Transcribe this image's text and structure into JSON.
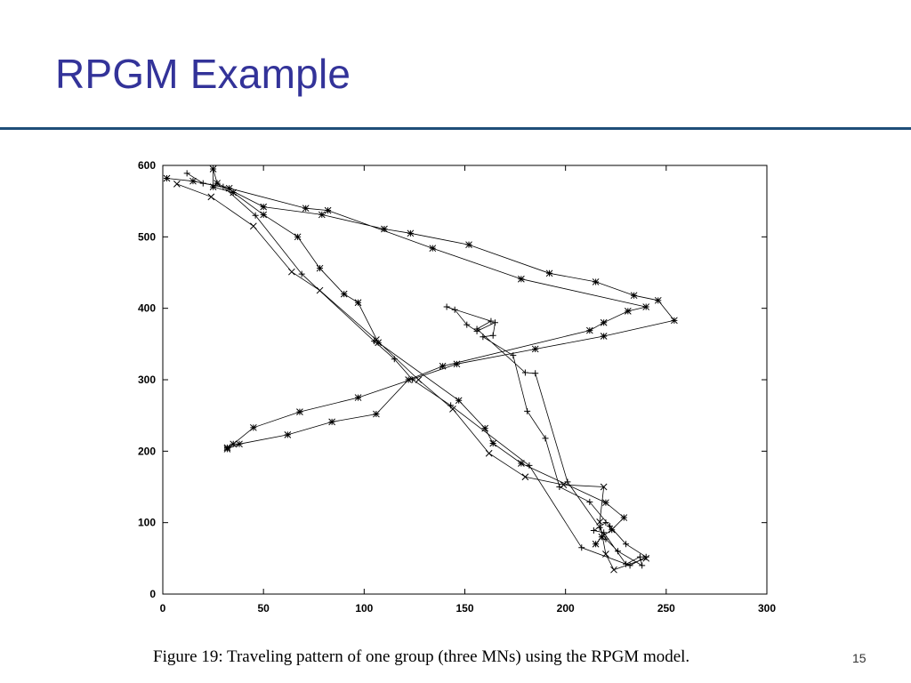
{
  "slide": {
    "title": "RPGM Example",
    "caption": "Figure 19: Traveling pattern of one group (three MNs) using the RPGM model.",
    "page_number": "15",
    "title_color": "#333399",
    "rule_color": "#1f4e79"
  },
  "chart_data": {
    "type": "line",
    "title": "",
    "xlabel": "",
    "ylabel": "",
    "xlim": [
      0,
      300
    ],
    "ylim": [
      0,
      600
    ],
    "xticks": [
      0,
      50,
      100,
      150,
      200,
      250,
      300
    ],
    "yticks": [
      0,
      100,
      200,
      300,
      400,
      500,
      600
    ],
    "grid": false,
    "legend": "none",
    "series": [
      {
        "marker": "x",
        "points": [
          [
            7,
            574
          ],
          [
            24,
            556
          ],
          [
            45,
            515
          ],
          [
            64,
            451
          ],
          [
            78,
            425
          ],
          [
            106,
            356
          ],
          [
            127,
            300
          ],
          [
            144,
            259
          ],
          [
            162,
            197
          ],
          [
            180,
            164
          ],
          [
            199,
            153
          ],
          [
            219,
            150
          ],
          [
            217,
            101
          ],
          [
            220,
            56
          ],
          [
            224,
            34
          ],
          [
            240,
            50
          ]
        ]
      },
      {
        "marker": "+",
        "points": [
          [
            12,
            589
          ],
          [
            20,
            575
          ],
          [
            30,
            570
          ],
          [
            46,
            530
          ],
          [
            69,
            448
          ],
          [
            105,
            354
          ],
          [
            115,
            329
          ],
          [
            124,
            300
          ],
          [
            143,
            264
          ],
          [
            182,
            180
          ],
          [
            208,
            65
          ],
          [
            232,
            40
          ],
          [
            240,
            52
          ],
          [
            230,
            70
          ],
          [
            222,
            95
          ],
          [
            212,
            129
          ],
          [
            197,
            150
          ],
          [
            190,
            218
          ],
          [
            181,
            256
          ],
          [
            174,
            334
          ],
          [
            159,
            360
          ],
          [
            164,
            362
          ],
          [
            165,
            380
          ],
          [
            156,
            368
          ],
          [
            151,
            377
          ],
          [
            145,
            398
          ],
          [
            141,
            402
          ],
          [
            163,
            382
          ],
          [
            156,
            371
          ],
          [
            180,
            310
          ],
          [
            185,
            309
          ],
          [
            201,
            157
          ],
          [
            217,
            93
          ],
          [
            220,
            77
          ],
          [
            226,
            60
          ],
          [
            238,
            40
          ],
          [
            237,
            52
          ],
          [
            230,
            42
          ],
          [
            219,
            86
          ],
          [
            214,
            89
          ],
          [
            220,
            100
          ]
        ]
      },
      {
        "marker": "asterisk",
        "points": [
          [
            2,
            582
          ],
          [
            15,
            578
          ],
          [
            33,
            568
          ],
          [
            71,
            540
          ],
          [
            82,
            537
          ],
          [
            134,
            484
          ],
          [
            178,
            441
          ],
          [
            240,
            402
          ],
          [
            231,
            396
          ],
          [
            219,
            380
          ],
          [
            212,
            369
          ],
          [
            139,
            319
          ],
          [
            122,
            300
          ],
          [
            106,
            252
          ],
          [
            84,
            241
          ],
          [
            62,
            223
          ],
          [
            38,
            210
          ],
          [
            32,
            203
          ],
          [
            32,
            205
          ],
          [
            35,
            210
          ],
          [
            45,
            233
          ],
          [
            68,
            255
          ],
          [
            97,
            275
          ],
          [
            146,
            322
          ],
          [
            185,
            343
          ],
          [
            219,
            361
          ],
          [
            254,
            383
          ],
          [
            246,
            411
          ],
          [
            234,
            418
          ],
          [
            215,
            437
          ],
          [
            192,
            449
          ],
          [
            152,
            489
          ],
          [
            123,
            505
          ],
          [
            110,
            511
          ],
          [
            79,
            531
          ],
          [
            50,
            542
          ],
          [
            27,
            575
          ],
          [
            25,
            595
          ],
          [
            25,
            570
          ],
          [
            35,
            562
          ],
          [
            50,
            531
          ],
          [
            67,
            500
          ],
          [
            78,
            456
          ],
          [
            90,
            420
          ],
          [
            97,
            408
          ],
          [
            107,
            352
          ],
          [
            147,
            271
          ],
          [
            160,
            232
          ],
          [
            164,
            211
          ],
          [
            178,
            183
          ],
          [
            220,
            128
          ],
          [
            229,
            107
          ],
          [
            223,
            90
          ],
          [
            218,
            80
          ],
          [
            215,
            70
          ]
        ]
      }
    ]
  }
}
